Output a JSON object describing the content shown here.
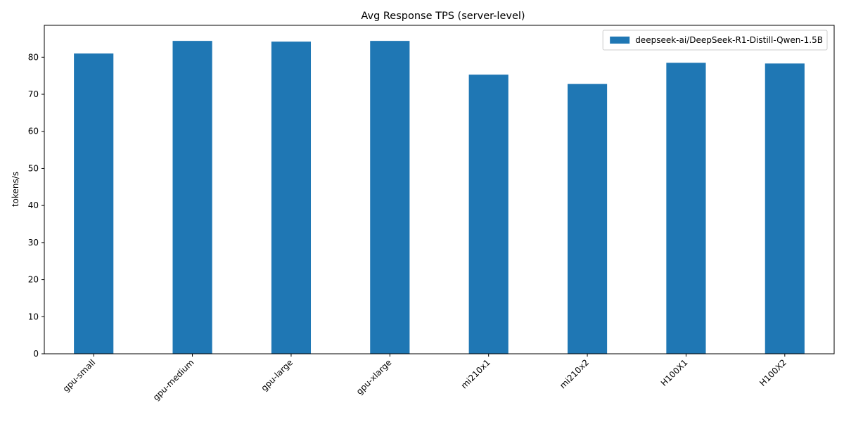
{
  "chart_data": {
    "type": "bar",
    "title": "Avg Response TPS (server-level)",
    "xlabel": "",
    "ylabel": "tokens/s",
    "categories": [
      "gpu-small",
      "gpu-medium",
      "gpu-large",
      "gpu-xlarge",
      "mi210x1",
      "mi210x2",
      "H100X1",
      "H100X2"
    ],
    "series": [
      {
        "name": "deepseek-ai/DeepSeek-R1-Distill-Qwen-1.5B",
        "values": [
          81.0,
          84.4,
          84.2,
          84.4,
          75.3,
          72.8,
          78.5,
          78.3
        ],
        "color": "#1f77b4"
      }
    ],
    "ylim": [
      0,
      88.6
    ],
    "yticks": [
      0,
      10,
      20,
      30,
      40,
      50,
      60,
      70,
      80
    ],
    "grid": false,
    "legend_position": "top-right"
  }
}
